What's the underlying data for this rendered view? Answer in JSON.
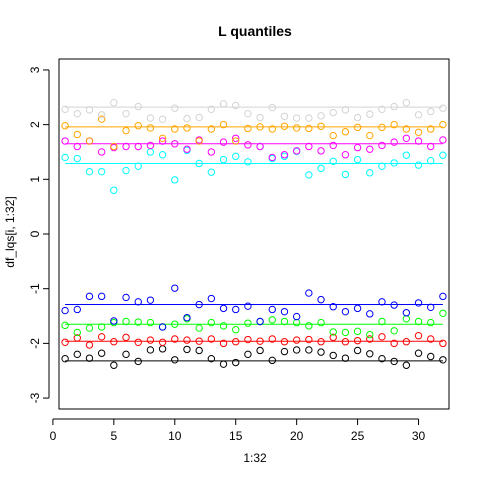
{
  "chart_data": {
    "type": "scatter",
    "title": "L quantiles",
    "xlabel": "1:32",
    "ylabel": "df_lqs[i, 1:32]",
    "xlim": [
      0.5,
      32.5
    ],
    "ylim": [
      -3.2,
      3.2
    ],
    "x_ticks": [
      0,
      5,
      10,
      15,
      20,
      25,
      30
    ],
    "y_ticks": [
      -3,
      -2,
      -1,
      0,
      1,
      2,
      3
    ],
    "grid": false,
    "x": [
      1,
      2,
      3,
      4,
      5,
      6,
      7,
      8,
      9,
      10,
      11,
      12,
      13,
      14,
      15,
      16,
      17,
      18,
      19,
      20,
      21,
      22,
      23,
      24,
      25,
      26,
      27,
      28,
      29,
      30,
      31,
      32
    ],
    "series": [
      {
        "color": "#000000",
        "reference_level": -2.32,
        "values": [
          -2.28,
          -2.2,
          -2.27,
          -2.18,
          -2.4,
          -2.2,
          -2.33,
          -2.12,
          -2.1,
          -2.3,
          -2.11,
          -2.13,
          -2.28,
          -2.38,
          -2.35,
          -2.2,
          -2.13,
          -2.31,
          -2.15,
          -2.12,
          -2.12,
          -2.16,
          -2.22,
          -2.27,
          -2.13,
          -2.19,
          -2.28,
          -2.33,
          -2.4,
          -2.18,
          -2.24,
          -2.3
        ]
      },
      {
        "color": "#ff0000",
        "reference_level": -1.96,
        "values": [
          -1.98,
          -1.9,
          -2.03,
          -1.88,
          -1.97,
          -1.89,
          -1.98,
          -1.94,
          -1.98,
          -1.92,
          -1.94,
          -1.96,
          -1.92,
          -2.0,
          -1.97,
          -1.93,
          -1.96,
          -1.92,
          -1.97,
          -1.94,
          -1.93,
          -1.97,
          -1.89,
          -1.97,
          -1.95,
          -1.92,
          -1.88,
          -2.0,
          -1.97,
          -1.86,
          -1.92,
          -2.0
        ]
      },
      {
        "color": "#00ff00",
        "reference_level": -1.65,
        "values": [
          -1.67,
          -1.8,
          -1.72,
          -1.7,
          -1.62,
          -1.6,
          -1.61,
          -1.62,
          -1.7,
          -1.65,
          -1.55,
          -1.72,
          -1.62,
          -1.68,
          -1.75,
          -1.63,
          -1.6,
          -1.57,
          -1.6,
          -1.62,
          -1.68,
          -1.62,
          -1.79,
          -1.8,
          -1.78,
          -1.84,
          -1.6,
          -1.77,
          -1.55,
          -1.6,
          -1.62,
          -1.45
        ]
      },
      {
        "color": "#0000ff",
        "reference_level": -1.29,
        "values": [
          -1.4,
          -1.38,
          -1.14,
          -1.14,
          -1.59,
          -1.16,
          -1.24,
          -1.21,
          -1.7,
          -0.99,
          -1.53,
          -1.29,
          -1.18,
          -1.36,
          -1.38,
          -1.32,
          -1.6,
          -1.38,
          -1.42,
          -1.51,
          -1.08,
          -1.2,
          -1.33,
          -1.42,
          -1.36,
          -1.46,
          -1.24,
          -1.3,
          -1.44,
          -1.26,
          -1.34,
          -1.14
        ]
      },
      {
        "color": "#00ffff",
        "reference_level": 1.29,
        "values": [
          1.4,
          1.38,
          1.14,
          1.14,
          0.8,
          1.16,
          1.24,
          1.5,
          1.45,
          0.99,
          1.53,
          1.29,
          1.13,
          1.36,
          1.42,
          1.32,
          1.6,
          1.38,
          1.42,
          1.51,
          1.08,
          1.2,
          1.33,
          1.09,
          1.36,
          1.12,
          1.24,
          1.3,
          1.44,
          1.26,
          1.34,
          1.44
        ]
      },
      {
        "color": "#ff00ff",
        "reference_level": 1.65,
        "values": [
          1.7,
          1.6,
          1.7,
          1.5,
          1.58,
          1.6,
          1.6,
          1.62,
          1.7,
          1.65,
          1.55,
          1.72,
          1.5,
          1.68,
          1.75,
          1.63,
          1.6,
          1.4,
          1.45,
          1.52,
          1.6,
          1.52,
          1.62,
          1.45,
          1.58,
          1.55,
          1.62,
          1.68,
          1.75,
          1.7,
          1.6,
          1.72
        ]
      },
      {
        "color": "#ffa500",
        "reference_level": 1.96,
        "values": [
          1.98,
          1.82,
          1.7,
          2.1,
          1.6,
          1.89,
          1.98,
          1.94,
          1.75,
          1.92,
          1.94,
          1.7,
          1.92,
          2.0,
          1.7,
          1.93,
          1.96,
          1.92,
          1.97,
          1.94,
          1.93,
          1.97,
          1.8,
          1.87,
          1.95,
          1.8,
          1.95,
          2.0,
          1.92,
          1.86,
          1.92,
          2.0
        ]
      },
      {
        "color": "#d3d3d3",
        "reference_level": 2.32,
        "values": [
          2.28,
          2.2,
          2.27,
          2.18,
          2.4,
          2.2,
          2.33,
          2.12,
          2.1,
          2.3,
          2.11,
          2.13,
          2.28,
          2.38,
          2.35,
          2.2,
          2.13,
          2.31,
          2.15,
          2.12,
          2.12,
          2.16,
          2.22,
          2.27,
          2.13,
          2.19,
          2.28,
          2.33,
          2.4,
          2.18,
          2.24,
          2.3
        ]
      }
    ]
  }
}
